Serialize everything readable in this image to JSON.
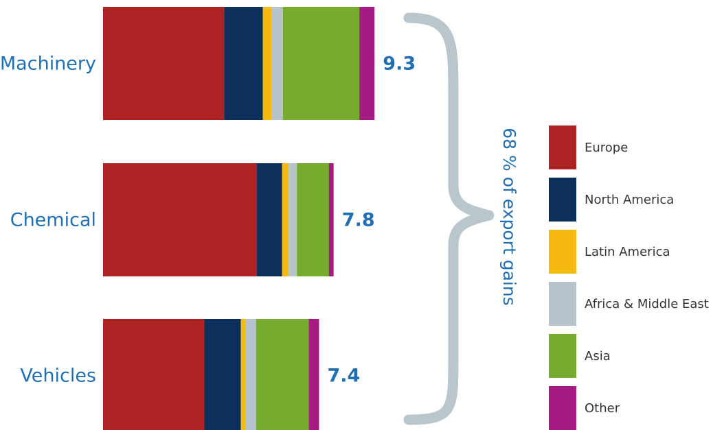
{
  "chart_data": {
    "type": "bar",
    "orientation": "horizontal",
    "stacked": true,
    "categories": [
      "Machinery",
      "Chemical",
      "Vehicles"
    ],
    "totals": [
      "9.3",
      "7.8",
      "7.4"
    ],
    "series": [
      {
        "name": "Europe",
        "color": "#ad2324",
        "values": [
          4.15,
          5.27,
          3.47
        ]
      },
      {
        "name": "North America",
        "color": "#0c2f5b",
        "values": [
          1.32,
          0.86,
          1.25
        ]
      },
      {
        "name": "Latin America",
        "color": "#f6b90f",
        "values": [
          0.31,
          0.23,
          0.15
        ]
      },
      {
        "name": "Africa & Middle East",
        "color": "#b7c3ca",
        "values": [
          0.38,
          0.28,
          0.37
        ]
      },
      {
        "name": "Asia",
        "color": "#76ab2e",
        "values": [
          2.62,
          1.1,
          1.81
        ]
      },
      {
        "name": "Other",
        "color": "#a61a84",
        "values": [
          0.52,
          0.16,
          0.35
        ]
      }
    ],
    "annotation": "68 % of export gains",
    "legend_position": "right",
    "grid": false
  }
}
